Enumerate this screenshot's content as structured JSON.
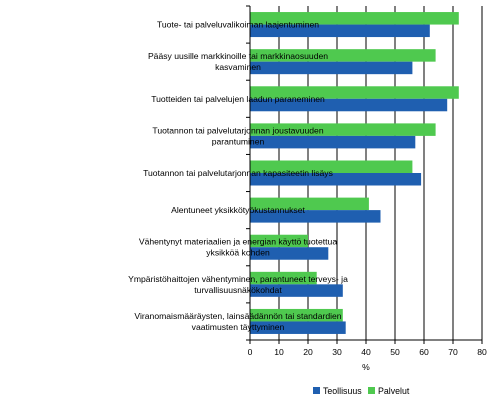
{
  "chart_data": {
    "type": "bar",
    "orientation": "horizontal",
    "categories": [
      [
        "Tuote- tai palveluvalikoiman laajentuminen"
      ],
      [
        "Pääsy uusille markkinoille tai markkinaosuuden",
        "kasvaminen"
      ],
      [
        "Tuotteiden tai palvelujen laadun paraneminen"
      ],
      [
        "Tuotannon tai palvelutarjonnan joustavuuden",
        "parantuminen"
      ],
      [
        "Tuotannon tai palvelutarjonnan kapasiteetin lisäys"
      ],
      [
        "Alentuneet yksikkötyökustannukset"
      ],
      [
        "Vähentynyt materiaalien ja energian käyttö tuotettua",
        "yksikköä kohden"
      ],
      [
        "Ympäristöhaittojen vähentyminen, parantuneet terveys- ja",
        "turvallisuusnäkökohdat"
      ],
      [
        "Viranomaismääräysten, lainsäädännön tai standardien",
        "vaatimusten täyttyminen"
      ]
    ],
    "series": [
      {
        "name": "Teollisuus",
        "color": "#1f5fb0",
        "values": [
          62,
          56,
          68,
          57,
          59,
          45,
          27,
          32,
          33
        ]
      },
      {
        "name": "Palvelut",
        "color": "#4fc94f",
        "values": [
          72,
          64,
          72,
          64,
          56,
          41,
          20,
          23,
          32
        ]
      }
    ],
    "xlabel": "%",
    "xlim": [
      0,
      80
    ],
    "xticks": [
      "0",
      "10",
      "20",
      "30",
      "40",
      "50",
      "60",
      "70",
      "80"
    ],
    "grid": "vertical",
    "legend_position": "bottom"
  }
}
